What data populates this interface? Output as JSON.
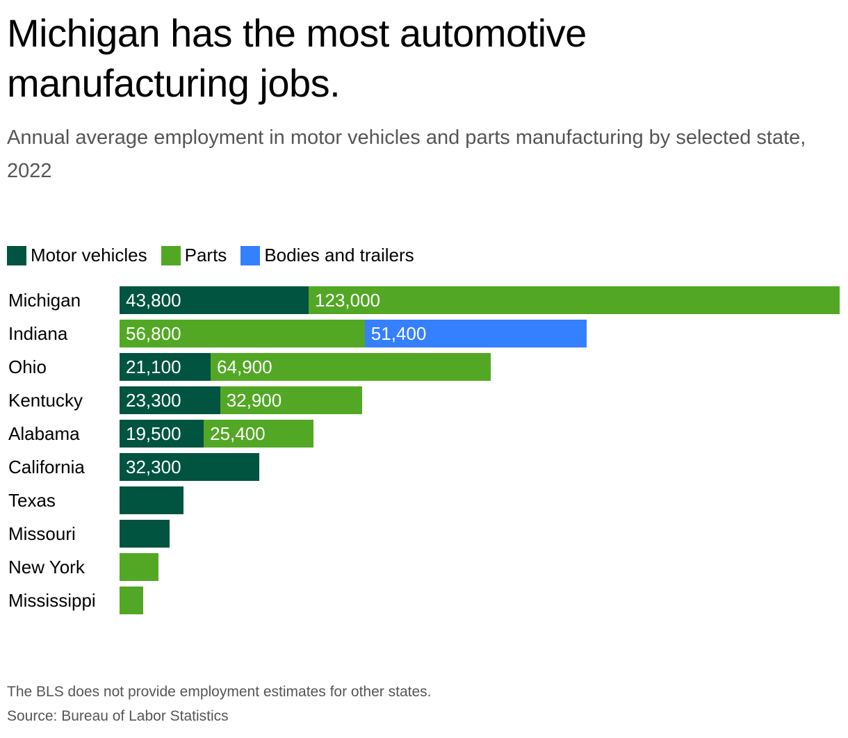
{
  "title": "Michigan has the most automotive manufacturing jobs.",
  "subtitle": "Annual average employment in motor vehicles and parts manufacturing by selected state, 2022",
  "footnote": "The BLS does not provide employment estimates for other states.",
  "source": "Source: Bureau of Labor Statistics",
  "colors": {
    "Motor vehicles": "#005440",
    "Parts": "#52a824",
    "Bodies and trailers": "#3480ff"
  },
  "chart_data": {
    "type": "bar",
    "orientation": "horizontal",
    "stacked": true,
    "title": "Michigan has the most automotive manufacturing jobs.",
    "subtitle": "Annual average employment in motor vehicles and parts manufacturing by selected state, 2022",
    "xlabel": "",
    "ylabel": "",
    "legend": [
      "Motor vehicles",
      "Parts",
      "Bodies and trailers"
    ],
    "legend_position": "top-left",
    "grid": false,
    "xlim": [
      0,
      166800
    ],
    "categories": [
      "Michigan",
      "Indiana",
      "Ohio",
      "Kentucky",
      "Alabama",
      "California",
      "Texas",
      "Missouri",
      "New York",
      "Mississippi"
    ],
    "rows": [
      {
        "state": "Michigan",
        "segments": [
          {
            "series": "Motor vehicles",
            "value": 43800,
            "label": "43,800"
          },
          {
            "series": "Parts",
            "value": 123000,
            "label": "123,000"
          }
        ]
      },
      {
        "state": "Indiana",
        "segments": [
          {
            "series": "Parts",
            "value": 56800,
            "label": "56,800"
          },
          {
            "series": "Bodies and trailers",
            "value": 51400,
            "label": "51,400"
          }
        ]
      },
      {
        "state": "Ohio",
        "segments": [
          {
            "series": "Motor vehicles",
            "value": 21100,
            "label": "21,100"
          },
          {
            "series": "Parts",
            "value": 64900,
            "label": "64,900"
          }
        ]
      },
      {
        "state": "Kentucky",
        "segments": [
          {
            "series": "Motor vehicles",
            "value": 23300,
            "label": "23,300"
          },
          {
            "series": "Parts",
            "value": 32900,
            "label": "32,900"
          }
        ]
      },
      {
        "state": "Alabama",
        "segments": [
          {
            "series": "Motor vehicles",
            "value": 19500,
            "label": "19,500"
          },
          {
            "series": "Parts",
            "value": 25400,
            "label": "25,400"
          }
        ]
      },
      {
        "state": "California",
        "segments": [
          {
            "series": "Motor vehicles",
            "value": 32300,
            "label": "32,300"
          }
        ]
      },
      {
        "state": "Texas",
        "segments": [
          {
            "series": "Motor vehicles",
            "value": 14800,
            "label": ""
          }
        ]
      },
      {
        "state": "Missouri",
        "segments": [
          {
            "series": "Motor vehicles",
            "value": 11600,
            "label": ""
          }
        ]
      },
      {
        "state": "New York",
        "segments": [
          {
            "series": "Parts",
            "value": 9000,
            "label": ""
          }
        ]
      },
      {
        "state": "Mississippi",
        "segments": [
          {
            "series": "Parts",
            "value": 5500,
            "label": ""
          }
        ]
      }
    ]
  }
}
